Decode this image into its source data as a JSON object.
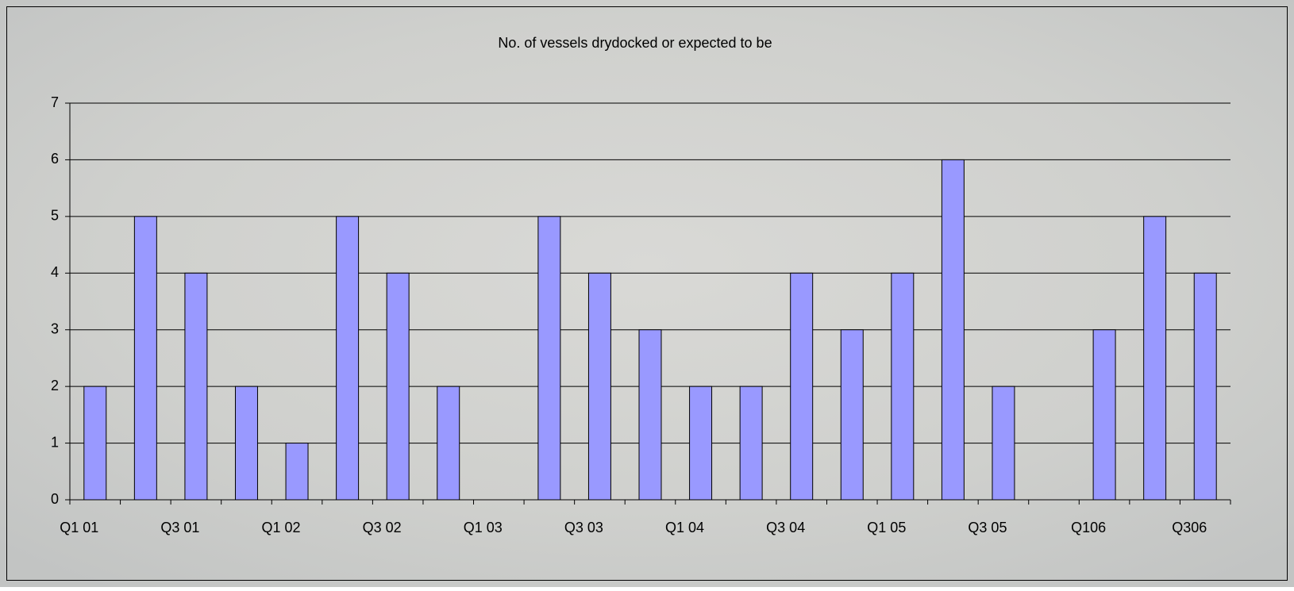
{
  "chart_data": {
    "type": "bar",
    "title": "No. of vessels drydocked or expected to be",
    "categories": [
      "Q1 01",
      null,
      "Q3 01",
      null,
      "Q1 02",
      null,
      "Q3 02",
      null,
      "Q1 03",
      null,
      "Q3 03",
      null,
      "Q1 04",
      null,
      "Q3 04",
      null,
      "Q1 05",
      null,
      "Q3 05",
      null,
      "Q106",
      null,
      "Q306"
    ],
    "values": [
      2,
      5,
      4,
      2,
      1,
      5,
      4,
      2,
      0,
      5,
      4,
      3,
      2,
      2,
      4,
      3,
      4,
      6,
      2,
      0,
      3,
      5,
      4
    ],
    "color": "#9999ff",
    "ylim": [
      0,
      7
    ],
    "yticks": [
      0,
      1,
      2,
      3,
      4,
      5,
      6,
      7
    ],
    "grid": true
  }
}
